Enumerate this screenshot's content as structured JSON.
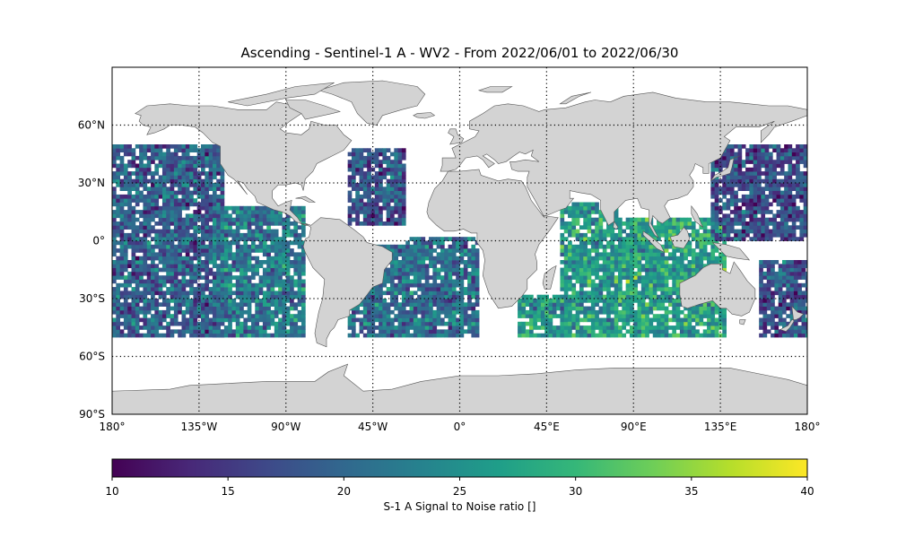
{
  "title": "Ascending - Sentinel-1 A - WV2 - From 2022/06/01 to 2022/06/30",
  "map": {
    "lon_range": [
      -180,
      180
    ],
    "lat_range": [
      -90,
      90
    ],
    "land_color": "#d3d3d3",
    "coast_color": "#555555",
    "grid": "dotted",
    "lon_ticks": [
      {
        "value": -180,
        "label": "180°"
      },
      {
        "value": -135,
        "label": "135°W"
      },
      {
        "value": -90,
        "label": "90°W"
      },
      {
        "value": -45,
        "label": "45°W"
      },
      {
        "value": 0,
        "label": "0°"
      },
      {
        "value": 45,
        "label": "45°E"
      },
      {
        "value": 90,
        "label": "90°E"
      },
      {
        "value": 135,
        "label": "135°E"
      },
      {
        "value": 180,
        "label": "180°"
      }
    ],
    "lat_ticks": [
      {
        "value": 60,
        "label": "60°N"
      },
      {
        "value": 30,
        "label": "30°N"
      },
      {
        "value": 0,
        "label": "0°"
      },
      {
        "value": -30,
        "label": "30°S"
      },
      {
        "value": -60,
        "label": "60°S"
      },
      {
        "value": -90,
        "label": "90°S"
      }
    ]
  },
  "chart_data": {
    "type": "heatmap",
    "variable": "S-1 A Signal to Noise ratio []",
    "lat_coverage": [
      -50,
      50
    ],
    "swath_regions": [
      {
        "lon": [
          -180,
          -122
        ],
        "lat": [
          -50,
          50
        ],
        "mean": 19
      },
      {
        "lon": [
          -128,
          -80
        ],
        "lat": [
          -50,
          18
        ],
        "mean": 22
      },
      {
        "lon": [
          -58,
          -28
        ],
        "lat": [
          -50,
          -2
        ],
        "mean": 21
      },
      {
        "lon": [
          -58,
          -28
        ],
        "lat": [
          8,
          48
        ],
        "mean": 18
      },
      {
        "lon": [
          -28,
          10
        ],
        "lat": [
          -50,
          2
        ],
        "mean": 21
      },
      {
        "lon": [
          30,
          58
        ],
        "lat": [
          -50,
          -28
        ],
        "mean": 26
      },
      {
        "lon": [
          52,
          82
        ],
        "lat": [
          -50,
          20
        ],
        "mean": 26
      },
      {
        "lon": [
          82,
          138
        ],
        "lat": [
          -50,
          12
        ],
        "mean": 27
      },
      {
        "lon": [
          130,
          180
        ],
        "lat": [
          0,
          50
        ],
        "mean": 17
      },
      {
        "lon": [
          155,
          180
        ],
        "lat": [
          -50,
          -10
        ],
        "mean": 18
      }
    ]
  },
  "colorbar": {
    "label": "S-1 A Signal to Noise ratio []",
    "min": 10,
    "max": 40,
    "ticks": [
      10,
      15,
      20,
      25,
      30,
      35,
      40
    ],
    "stops": [
      "#440154",
      "#482878",
      "#3e4989",
      "#31688e",
      "#26828e",
      "#1f9e89",
      "#35b779",
      "#6ece58",
      "#b5de2b",
      "#fde725"
    ]
  }
}
